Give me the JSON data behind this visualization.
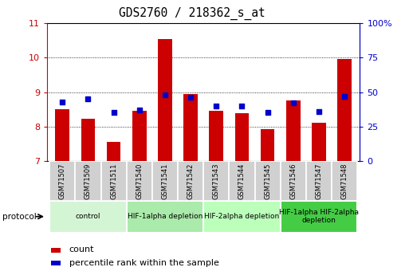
{
  "title": "GDS2760 / 218362_s_at",
  "samples": [
    "GSM71507",
    "GSM71509",
    "GSM71511",
    "GSM71540",
    "GSM71541",
    "GSM71542",
    "GSM71543",
    "GSM71544",
    "GSM71545",
    "GSM71546",
    "GSM71547",
    "GSM71548"
  ],
  "count_values": [
    8.5,
    8.22,
    7.55,
    8.45,
    10.55,
    8.95,
    8.45,
    8.38,
    7.93,
    8.75,
    8.12,
    9.97
  ],
  "percentile_values": [
    43,
    45,
    35,
    37,
    48,
    46,
    40,
    40,
    35,
    42,
    36,
    47
  ],
  "ylim_left": [
    7,
    11
  ],
  "ylim_right": [
    0,
    100
  ],
  "yticks_left": [
    7,
    8,
    9,
    10,
    11
  ],
  "yticks_right": [
    0,
    25,
    50,
    75,
    100
  ],
  "bar_color": "#cc0000",
  "dot_color": "#0000cc",
  "bar_bottom": 7,
  "groups": [
    {
      "label": "control",
      "start": 0,
      "end": 3,
      "color": "#d4f5d4"
    },
    {
      "label": "HIF-1alpha depletion",
      "start": 3,
      "end": 6,
      "color": "#aaeaaa"
    },
    {
      "label": "HIF-2alpha depletion",
      "start": 6,
      "end": 9,
      "color": "#bbffbb"
    },
    {
      "label": "HIF-1alpha HIF-2alpha\ndepletion",
      "start": 9,
      "end": 12,
      "color": "#44cc44"
    }
  ],
  "protocol_label": "protocol",
  "legend_count_label": "count",
  "legend_percentile_label": "percentile rank within the sample",
  "sample_box_color": "#d0d0d0",
  "left_tick_color": "#cc0000",
  "right_tick_color": "#0000cc"
}
